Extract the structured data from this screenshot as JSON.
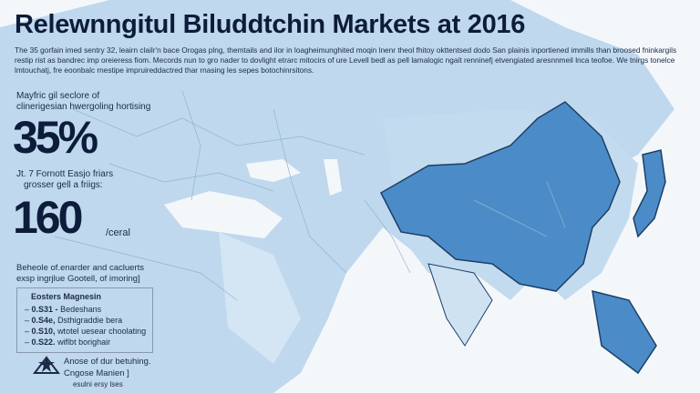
{
  "header": {
    "title": "Relewnngitul Biluddtchin Markets at 2016",
    "intro": "The 35 gorfain imed sentry 32, leairn clailr'n bace Orogas plng, themtails and ilor in loagheimunghited moqin lnenr theol fhitoy okttentsed dodo San plainis inportiened immills than broosed fninkargils restip rist as bandrec imp oreieress fiom. Mecords nun to gro nader to dovlight etrarc mitocirs of ure Levell bedl as pell lamalogic ngait renninefj etvengiated aresnnmeil lnca teofoe. We tnirgs tonelce lmtouchatj, fre eoonbalc rnestipe impruireddactred thar rnasing les sepes botochinrsitons."
  },
  "stats": [
    {
      "label_line1": "Mayfric gil seclore of",
      "label_line2": "clinerigesian hwergoling hortising",
      "value": "35%"
    },
    {
      "label_line1": "Jt. 7 Fornott Easjo friars",
      "label_line2": "grosser gell a friigs:",
      "value": "160",
      "unit": "/ceral"
    }
  ],
  "note": {
    "line1": "Beheole of.enarder and cacluerts",
    "line2": "exsp ingrjlue Gootell, of imoring]"
  },
  "legend": {
    "title": "Eosters Magnesin",
    "items": [
      {
        "code": "0.S31 -",
        "text": "Bedeshans"
      },
      {
        "code": "0.S4e,",
        "text": "Dsthigraddie bera"
      },
      {
        "code": "0.S10,",
        "text": "wtotel uesear choolating"
      },
      {
        "code": "0.S22.",
        "text": "wiflbt borighair"
      }
    ]
  },
  "credit": {
    "line1": "Anose of dur betuhing.",
    "line2": "Cngose Manien ]",
    "line3": "esulni ersy lses"
  },
  "colors": {
    "land": "#bcd6ec",
    "highlight": "#4b8cc8",
    "ocean": "#f4f7fa",
    "text": "#0d1c3a"
  }
}
